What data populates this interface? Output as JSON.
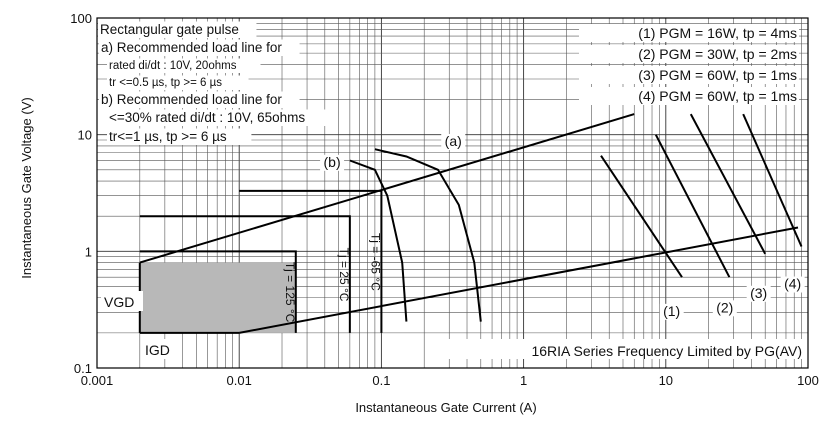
{
  "chart_data": {
    "type": "line",
    "x_scale": "log",
    "y_scale": "log",
    "xlim": [
      0.001,
      100
    ],
    "ylim": [
      0.1,
      100
    ],
    "grid": true,
    "xlabel": "Instantaneous Gate Current (A)",
    "ylabel": "Instantaneous Gate Voltage (V)",
    "x_tick_labels": [
      {
        "value": 0.001,
        "label": "0.001"
      },
      {
        "value": 0.01,
        "label": "0.01"
      },
      {
        "value": 0.1,
        "label": "0.1"
      },
      {
        "value": 1,
        "label": "1"
      },
      {
        "value": 10,
        "label": "10"
      },
      {
        "value": 100,
        "label": "100"
      }
    ],
    "y_tick_labels": [
      {
        "value": 0.1,
        "label": "0.1"
      },
      {
        "value": 1,
        "label": "1"
      },
      {
        "value": 10,
        "label": "10"
      },
      {
        "value": 100,
        "label": "100"
      }
    ],
    "notes_left": [
      "Rectangular gate pulse",
      "a) Recommended load line for",
      "rated di/dt : 10V, 20ohms",
      "tr <=0.5 µs, tp >= 6 µs",
      "b) Recommended load line for",
      "<=30% rated di/dt : 10V, 65ohms",
      "tr<=1 µs, tp >= 6 µs"
    ],
    "notes_right": [
      "(1) PGM = 16W,  tp = 4ms",
      "(2) PGM = 30W,  tp = 2ms",
      "(3) PGM = 60W,  tp = 1ms",
      "(4) PGM = 60W,  tp = 1ms"
    ],
    "footer_note": "16RIA Series Frequency Limited by PG(AV)",
    "region_labels": {
      "vgd": "VGD",
      "igd": "IGD"
    },
    "shaded_region": {
      "x": [
        0.002,
        0.025
      ],
      "y": [
        0.2,
        0.8
      ]
    },
    "temperature_boxes": [
      {
        "label": "Tj = 125 °C",
        "x": [
          0.002,
          0.025
        ],
        "y": [
          0.2,
          1.0
        ]
      },
      {
        "label": "Tj = 25 °C",
        "x": [
          0.002,
          0.06
        ],
        "y": [
          0.2,
          2.0
        ]
      },
      {
        "label": "Tj = -65 °C",
        "x": [
          0.01,
          0.1
        ],
        "y": [
          0.2,
          3.3
        ]
      }
    ],
    "series": [
      {
        "label": "(a)",
        "points": [
          [
            0.002,
            0.8
          ],
          [
            6,
            15
          ]
        ]
      },
      {
        "label": "(b)",
        "points": [
          [
            0.01,
            0.2
          ],
          [
            85,
            1.6
          ]
        ]
      },
      {
        "label": "(1)",
        "points": [
          [
            3.5,
            6.6
          ],
          [
            13,
            0.6
          ]
        ]
      },
      {
        "label": "(2)",
        "points": [
          [
            8.5,
            10
          ],
          [
            28,
            0.6
          ]
        ]
      },
      {
        "label": "(3)",
        "points": [
          [
            15,
            15
          ],
          [
            50,
            0.95
          ]
        ]
      },
      {
        "label": "(4)",
        "points": [
          [
            35,
            15
          ],
          [
            90,
            1.1
          ]
        ]
      },
      {
        "label": "",
        "points": [
          [
            0.15,
            0.25
          ],
          [
            0.14,
            0.8
          ],
          [
            0.11,
            3.0
          ],
          [
            0.09,
            5.0
          ],
          [
            0.06,
            6.0
          ]
        ]
      },
      {
        "label": "",
        "points": [
          [
            0.5,
            0.25
          ],
          [
            0.45,
            0.8
          ],
          [
            0.35,
            2.5
          ],
          [
            0.25,
            5.0
          ],
          [
            0.15,
            6.5
          ],
          [
            0.09,
            7.5
          ]
        ]
      }
    ],
    "curve_labels": [
      {
        "label": "(a)",
        "x": 0.32,
        "y": 8.0
      },
      {
        "label": "(b)",
        "x": 0.045,
        "y": 5.3
      },
      {
        "label": "(1)",
        "x": 11,
        "y": 0.28
      },
      {
        "label": "(2)",
        "x": 26,
        "y": 0.3
      },
      {
        "label": "(3)",
        "x": 45,
        "y": 0.4
      },
      {
        "label": "(4)",
        "x": 78,
        "y": 0.48
      }
    ]
  }
}
